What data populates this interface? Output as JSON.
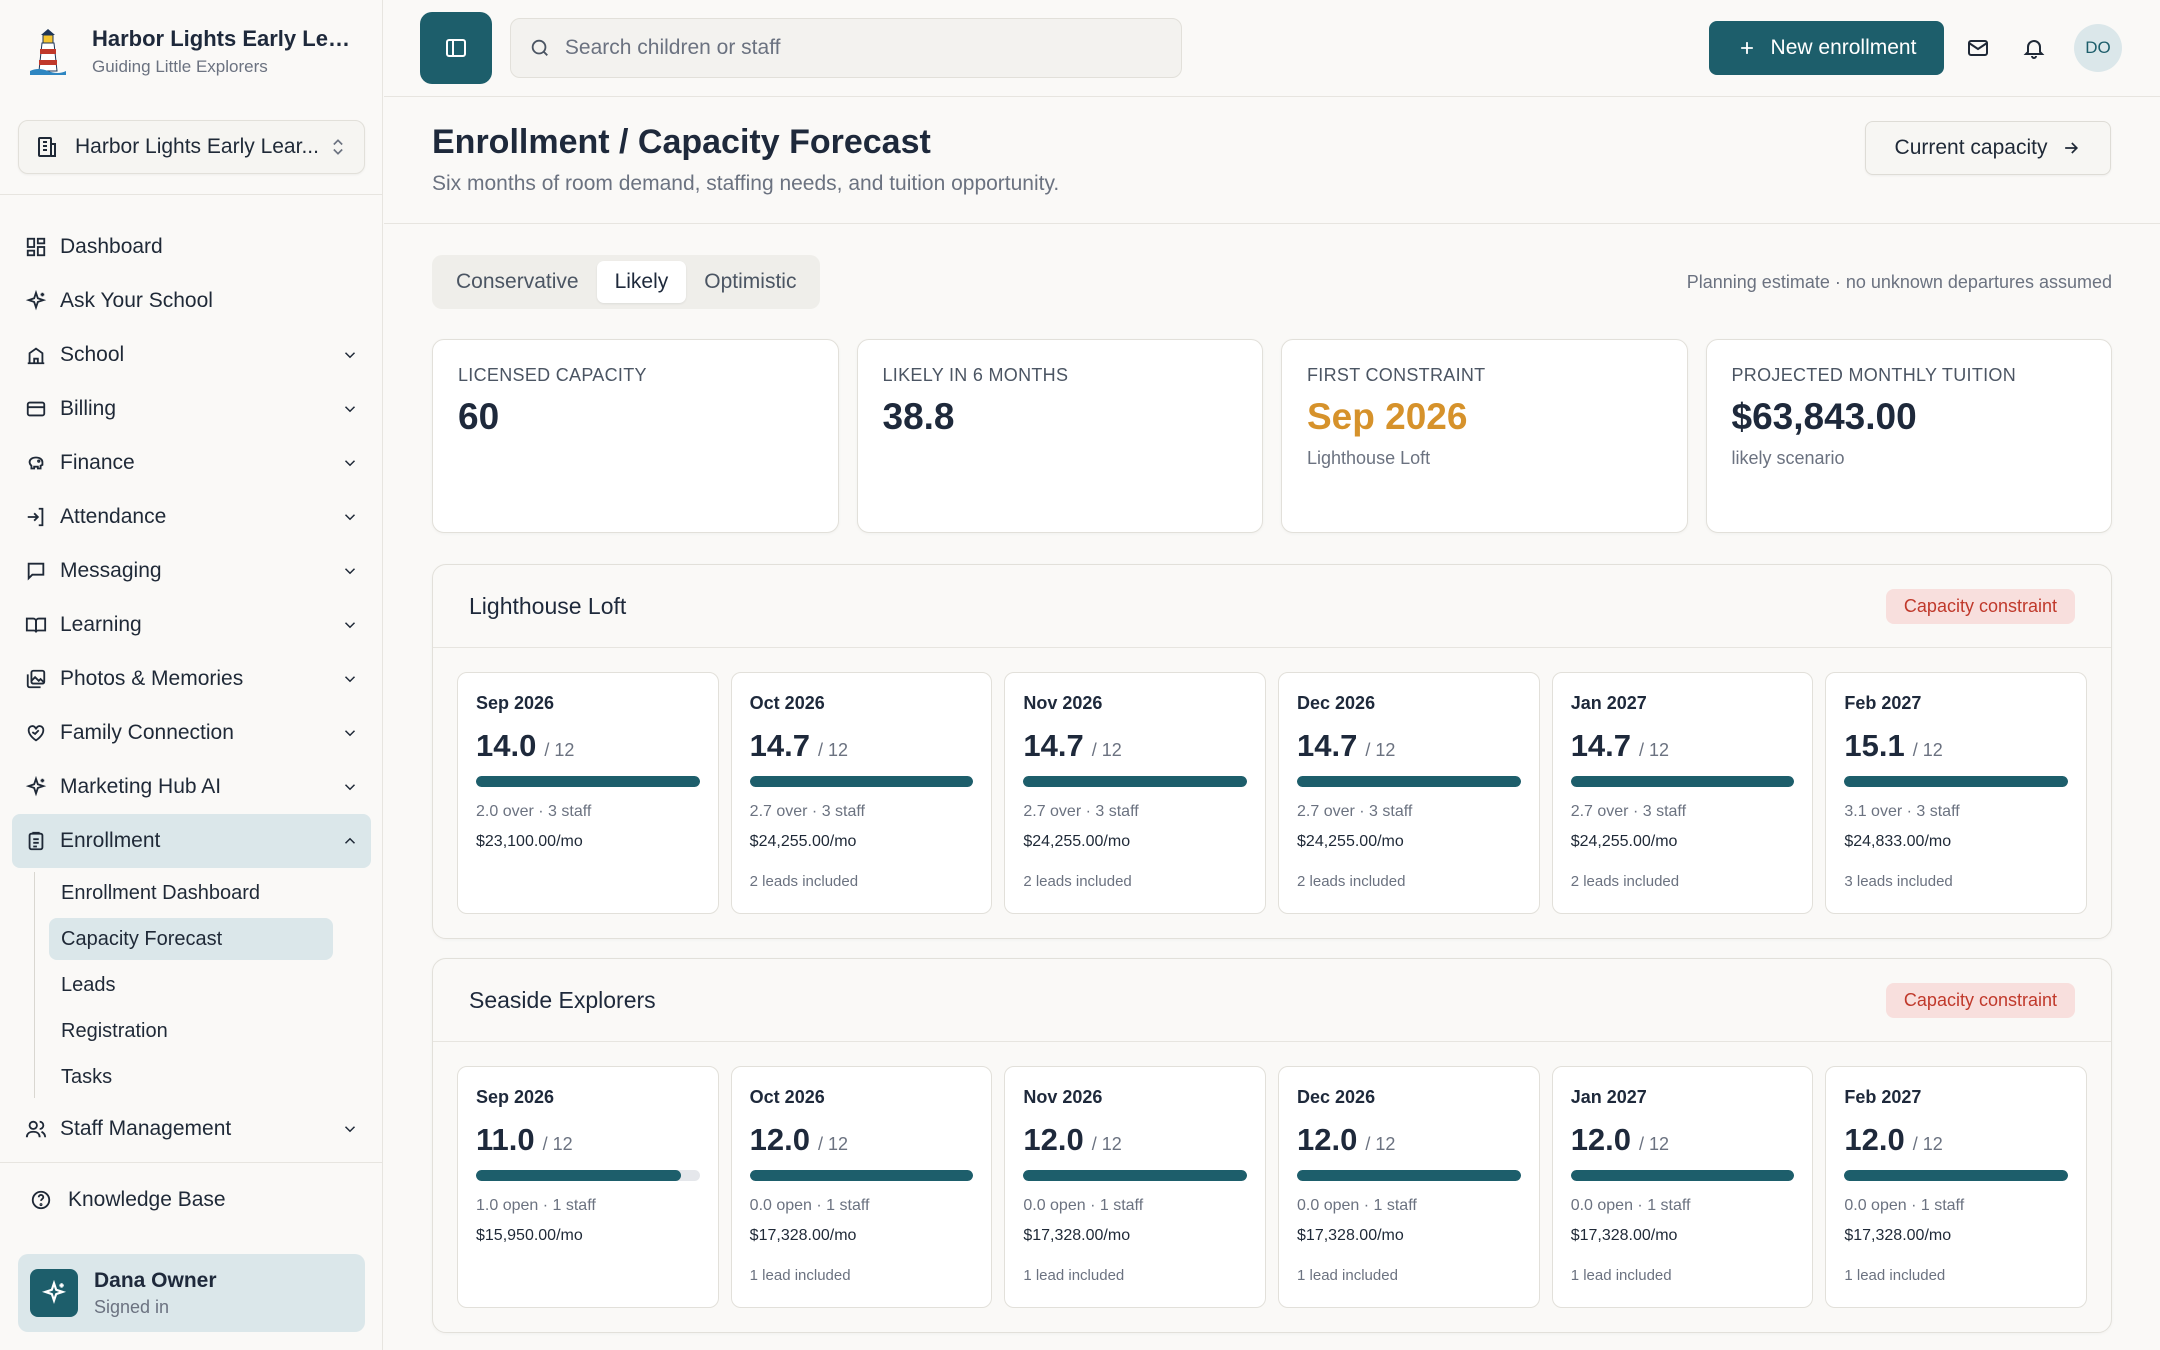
{
  "sidebar": {
    "brand_name": "Harbor Lights Early Learn...",
    "brand_sub": "Guiding Little Explorers",
    "school_switch": "Harbor Lights Early Lear...",
    "nav": [
      {
        "label": "Dashboard",
        "icon": "dashboard-icon"
      },
      {
        "label": "Ask Your School",
        "icon": "sparkles-icon"
      },
      {
        "label": "School",
        "icon": "school-icon"
      },
      {
        "label": "Billing",
        "icon": "billing-icon"
      },
      {
        "label": "Finance",
        "icon": "piggy-bank-icon"
      },
      {
        "label": "Attendance",
        "icon": "sign-in-icon"
      },
      {
        "label": "Messaging",
        "icon": "message-icon"
      },
      {
        "label": "Learning",
        "icon": "book-icon"
      },
      {
        "label": "Photos & Memories",
        "icon": "photos-icon"
      },
      {
        "label": "Family Connection",
        "icon": "heart-handshake-icon"
      },
      {
        "label": "Marketing Hub AI",
        "icon": "sparkles-icon"
      },
      {
        "label": "Enrollment",
        "icon": "clipboard-icon"
      }
    ],
    "enrollment_sub": [
      "Enrollment Dashboard",
      "Capacity Forecast",
      "Leads",
      "Registration",
      "Tasks"
    ],
    "staff": "Staff Management",
    "knowledge_base": "Knowledge Base",
    "user": {
      "name": "Dana Owner",
      "status": "Signed in"
    }
  },
  "topbar": {
    "search_placeholder": "Search children or staff",
    "new_enrollment": "New enrollment",
    "avatar_initials": "DO"
  },
  "page": {
    "title": "Enrollment / Capacity Forecast",
    "subtitle": "Six months of room demand, staffing needs, and tuition opportunity.",
    "current_capacity_btn": "Current capacity",
    "tabs": [
      "Conservative",
      "Likely",
      "Optimistic"
    ],
    "active_tab": "Likely",
    "plan_note": "Planning estimate · no unknown departures assumed"
  },
  "kpis": [
    {
      "label": "LICENSED CAPACITY",
      "value": "60",
      "note": ""
    },
    {
      "label": "LIKELY IN 6 MONTHS",
      "value": "38.8",
      "note": ""
    },
    {
      "label": "FIRST CONSTRAINT",
      "value": "Sep 2026",
      "note": "Lighthouse Loft"
    },
    {
      "label": "PROJECTED MONTHLY TUITION",
      "value": "$63,843.00",
      "note": "likely scenario"
    }
  ],
  "rooms": [
    {
      "name": "Lighthouse Loft",
      "badge": "Capacity constraint",
      "months": [
        {
          "label": "Sep 2026",
          "value": "14.0",
          "cap": "/ 12",
          "fill": 1.0,
          "status": "2.0 over · 3 staff",
          "tuition": "$23,100.00/mo",
          "leads": ""
        },
        {
          "label": "Oct 2026",
          "value": "14.7",
          "cap": "/ 12",
          "fill": 1.0,
          "status": "2.7 over · 3 staff",
          "tuition": "$24,255.00/mo",
          "leads": "2 leads included"
        },
        {
          "label": "Nov 2026",
          "value": "14.7",
          "cap": "/ 12",
          "fill": 1.0,
          "status": "2.7 over · 3 staff",
          "tuition": "$24,255.00/mo",
          "leads": "2 leads included"
        },
        {
          "label": "Dec 2026",
          "value": "14.7",
          "cap": "/ 12",
          "fill": 1.0,
          "status": "2.7 over · 3 staff",
          "tuition": "$24,255.00/mo",
          "leads": "2 leads included"
        },
        {
          "label": "Jan 2027",
          "value": "14.7",
          "cap": "/ 12",
          "fill": 1.0,
          "status": "2.7 over · 3 staff",
          "tuition": "$24,255.00/mo",
          "leads": "2 leads included"
        },
        {
          "label": "Feb 2027",
          "value": "15.1",
          "cap": "/ 12",
          "fill": 1.0,
          "status": "3.1 over · 3 staff",
          "tuition": "$24,833.00/mo",
          "leads": "3 leads included"
        }
      ]
    },
    {
      "name": "Seaside Explorers",
      "badge": "Capacity constraint",
      "months": [
        {
          "label": "Sep 2026",
          "value": "11.0",
          "cap": "/ 12",
          "fill": 0.917,
          "status": "1.0 open · 1 staff",
          "tuition": "$15,950.00/mo",
          "leads": ""
        },
        {
          "label": "Oct 2026",
          "value": "12.0",
          "cap": "/ 12",
          "fill": 1.0,
          "status": "0.0 open · 1 staff",
          "tuition": "$17,328.00/mo",
          "leads": "1 lead included"
        },
        {
          "label": "Nov 2026",
          "value": "12.0",
          "cap": "/ 12",
          "fill": 1.0,
          "status": "0.0 open · 1 staff",
          "tuition": "$17,328.00/mo",
          "leads": "1 lead included"
        },
        {
          "label": "Dec 2026",
          "value": "12.0",
          "cap": "/ 12",
          "fill": 1.0,
          "status": "0.0 open · 1 staff",
          "tuition": "$17,328.00/mo",
          "leads": "1 lead included"
        },
        {
          "label": "Jan 2027",
          "value": "12.0",
          "cap": "/ 12",
          "fill": 1.0,
          "status": "0.0 open · 1 staff",
          "tuition": "$17,328.00/mo",
          "leads": "1 lead included"
        },
        {
          "label": "Feb 2027",
          "value": "12.0",
          "cap": "/ 12",
          "fill": 1.0,
          "status": "0.0 open · 1 staff",
          "tuition": "$17,328.00/mo",
          "leads": "1 lead included"
        }
      ]
    }
  ],
  "colors": {
    "accent": "#1d5e6b",
    "warn": "#d6922b",
    "badge_bg": "#f8dfdd",
    "badge_text": "#c0392b"
  }
}
